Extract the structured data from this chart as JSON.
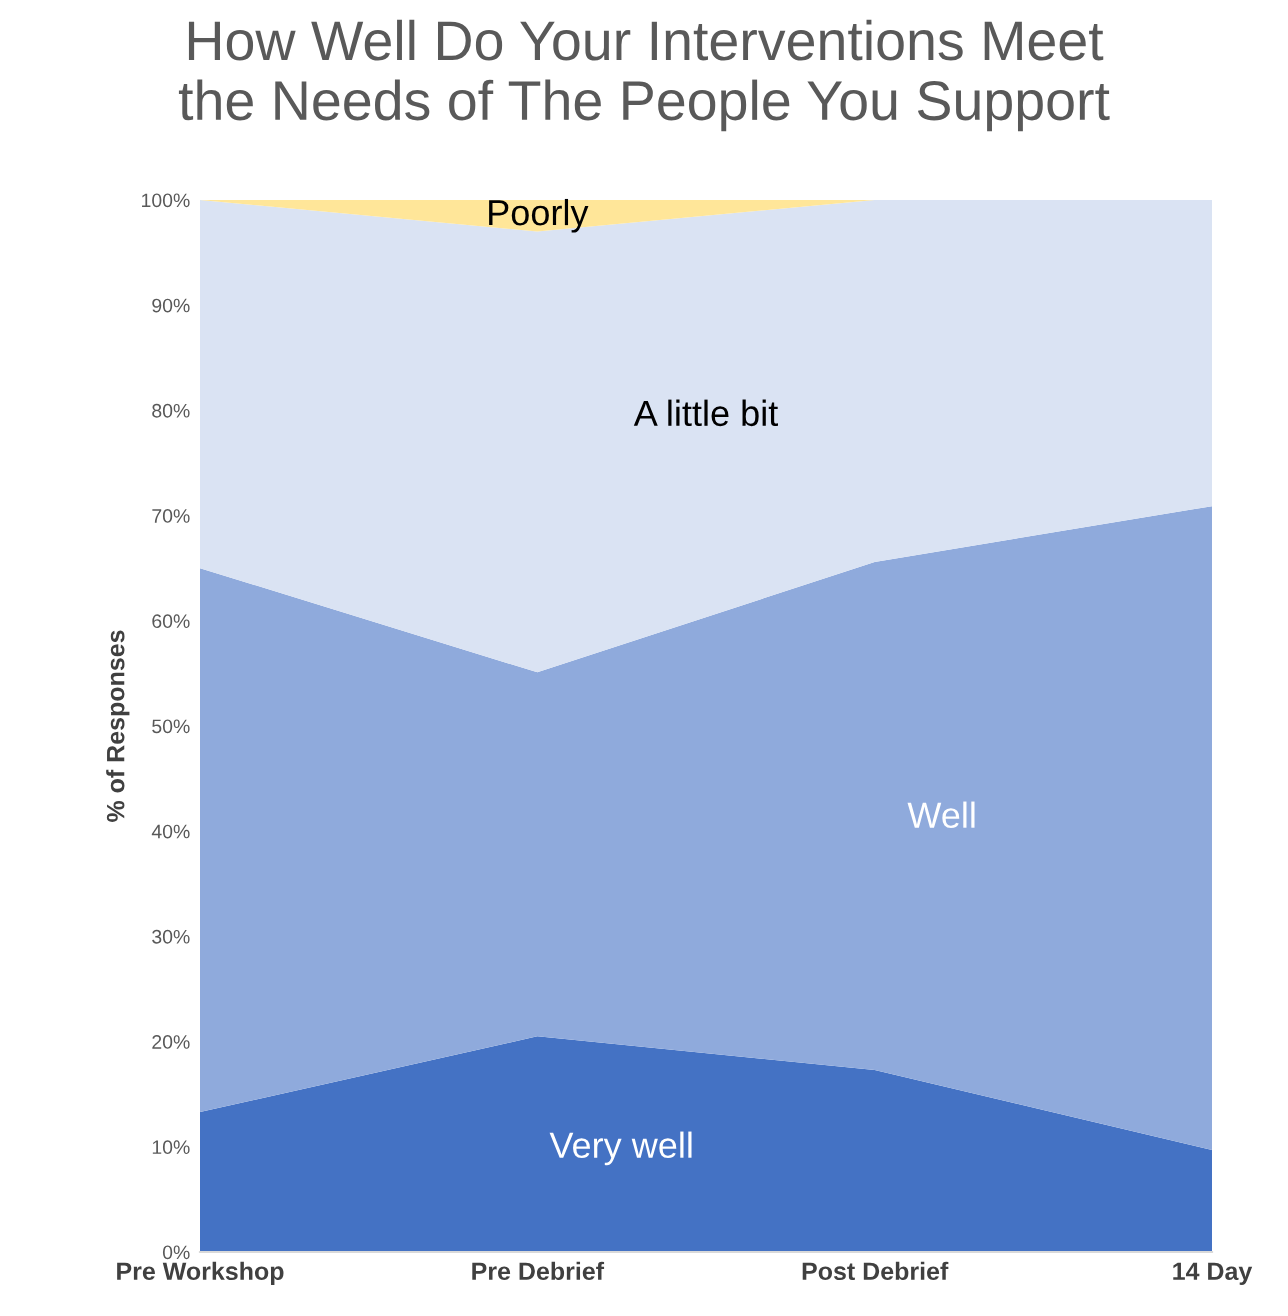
{
  "chart_data": {
    "type": "area",
    "stacked": true,
    "title": "How Well Do Your Interventions Meet\nthe Needs of The People You Support",
    "ylabel": "% of Responses",
    "categories": [
      "Pre Workshop",
      "Pre Debrief",
      "Post Debrief",
      "14 Day"
    ],
    "series": [
      {
        "name": "Very well",
        "color": "#4472c4",
        "values": [
          13.3,
          20.5,
          17.3,
          9.7
        ]
      },
      {
        "name": "Well",
        "color": "#8faadc",
        "values": [
          51.7,
          34.6,
          48.3,
          61.2
        ]
      },
      {
        "name": "A little bit",
        "color": "#dae3f3",
        "values": [
          35,
          41.9,
          34.4,
          29.1
        ]
      },
      {
        "name": "Poorly",
        "color": "#ffe699",
        "values": [
          0,
          3,
          0,
          0
        ]
      }
    ],
    "ylim": [
      0,
      100
    ],
    "yticks": [
      {
        "value": 0,
        "label": "0%"
      },
      {
        "value": 10,
        "label": "10%"
      },
      {
        "value": 20,
        "label": "20%"
      },
      {
        "value": 30,
        "label": "30%"
      },
      {
        "value": 40,
        "label": "40%"
      },
      {
        "value": 50,
        "label": "50%"
      },
      {
        "value": 60,
        "label": "60%"
      },
      {
        "value": 70,
        "label": "70%"
      },
      {
        "value": 80,
        "label": "80%"
      },
      {
        "value": 90,
        "label": "90%"
      },
      {
        "value": 100,
        "label": "100%"
      }
    ],
    "grid": false,
    "legend": false
  }
}
